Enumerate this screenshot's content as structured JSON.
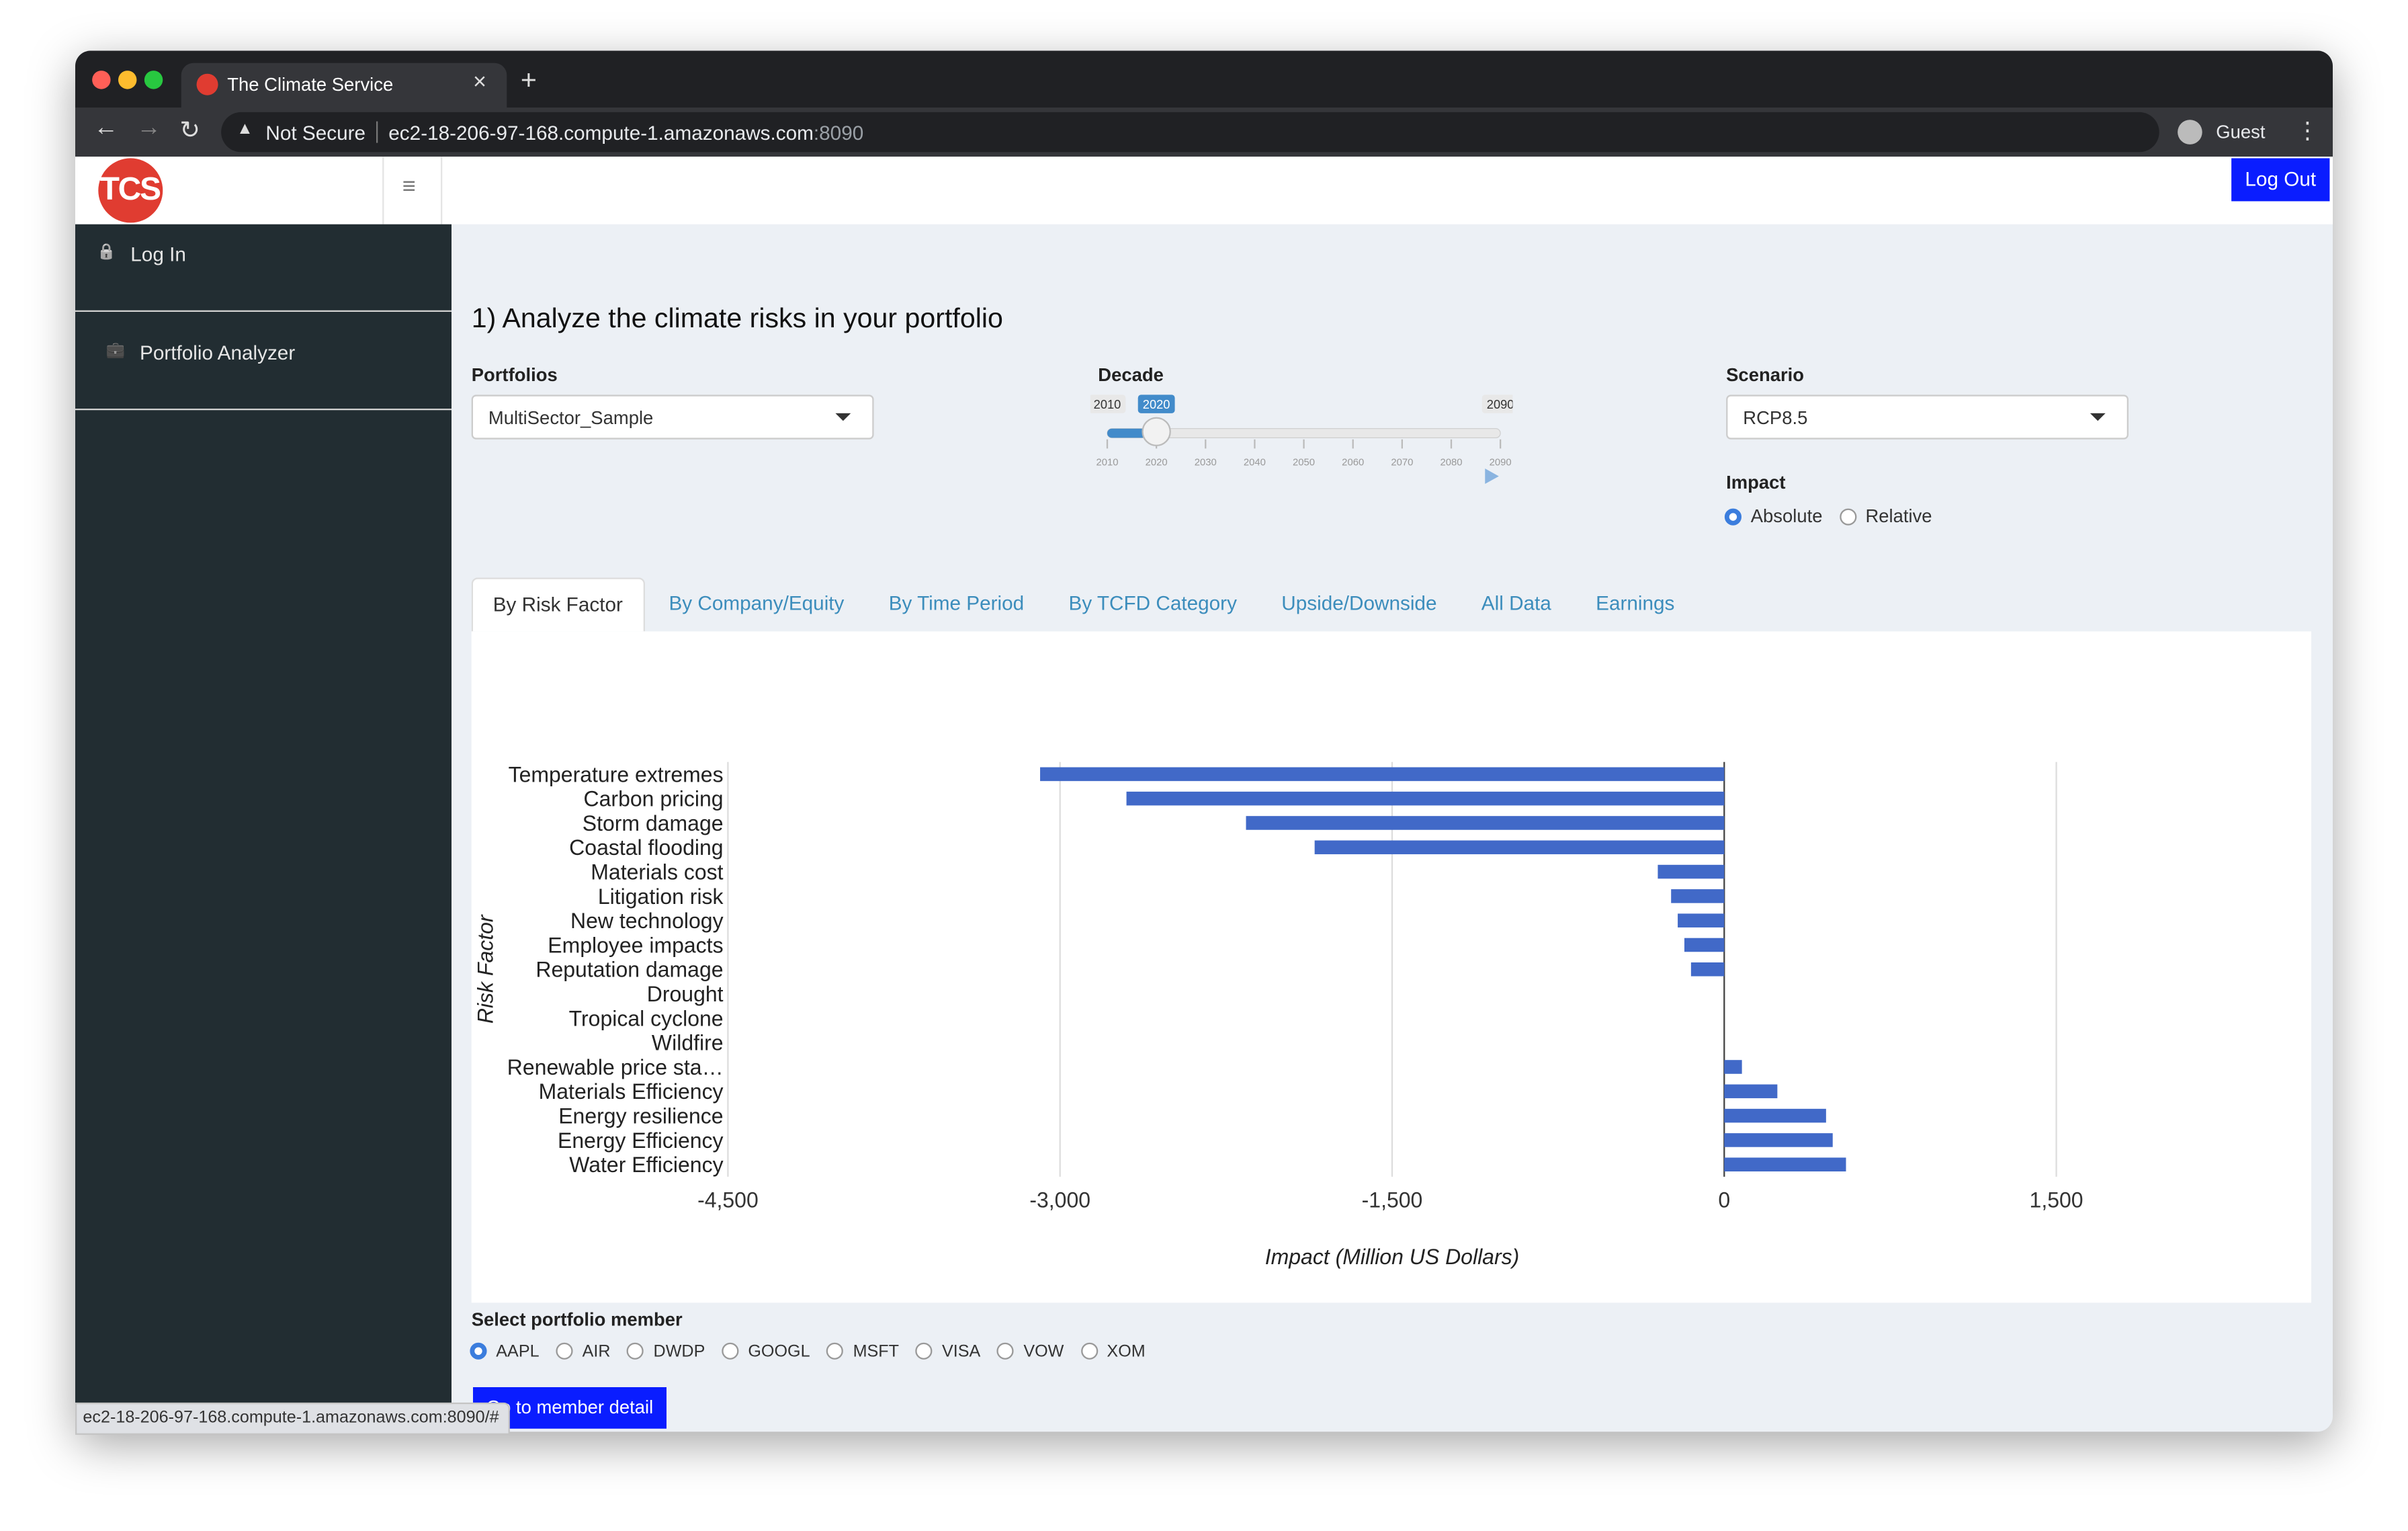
{
  "browser": {
    "tab_title": "The Climate Service",
    "url_warning": "Not Secure",
    "url_host": "ec2-18-206-97-168.compute-1.amazonaws.com",
    "url_port": ":8090",
    "profile": "Guest"
  },
  "header": {
    "logo": "TCS",
    "logout": "Log Out"
  },
  "sidebar": {
    "items": [
      "Log In",
      "Portfolio Analyzer"
    ]
  },
  "main": {
    "heading": "1) Analyze the climate risks in your portfolio",
    "portfolios": {
      "label": "Portfolios",
      "value": "MultiSector_Sample"
    },
    "decade": {
      "label": "Decade",
      "min": 2010,
      "max": 2090,
      "value": 2020,
      "ticks": [
        2010,
        2020,
        2030,
        2040,
        2050,
        2060,
        2070,
        2080,
        2090
      ]
    },
    "scenario": {
      "label": "Scenario",
      "value": "RCP8.5"
    },
    "impact": {
      "label": "Impact",
      "options": [
        "Absolute",
        "Relative"
      ],
      "selected": "Absolute"
    },
    "tabs": [
      "By Risk Factor",
      "By Company/Equity",
      "By Time Period",
      "By TCFD Category",
      "Upside/Downside",
      "All Data",
      "Earnings"
    ],
    "active_tab": "By Risk Factor",
    "member": {
      "label": "Select portfolio member",
      "options": [
        "AAPL",
        "AIR",
        "DWDP",
        "GOOGL",
        "MSFT",
        "VISA",
        "VOW",
        "XOM"
      ],
      "selected": "AAPL"
    },
    "button": "Go to member detail",
    "status_url": "ec2-18-206-97-168.compute-1.amazonaws.com:8090/#"
  },
  "chart_data": {
    "type": "hbar",
    "xlabel": "Impact (Million US Dollars)",
    "ylabel": "Risk Factor",
    "categories": [
      "Temperature extremes",
      "Carbon pricing",
      "Storm damage",
      "Coastal flooding",
      "Materials cost",
      "Litigation risk",
      "New technology",
      "Employee impacts",
      "Reputation damage",
      "Drought",
      "Tropical cyclone",
      "Wildfire",
      "Renewable price sta…",
      "Materials Efficiency",
      "Energy resilience",
      "Energy Efficiency",
      "Water Efficiency"
    ],
    "values": [
      -3090,
      -2700,
      -2160,
      -1850,
      -300,
      -240,
      -210,
      -180,
      -150,
      0,
      0,
      0,
      80,
      240,
      460,
      490,
      550
    ],
    "color": "#4169c8",
    "xlim": [
      -4500,
      1500
    ],
    "xticks": [
      {
        "value": -4500,
        "label": "-4,500"
      },
      {
        "value": -3000,
        "label": "-3,000"
      },
      {
        "value": -1500,
        "label": "-1,500"
      },
      0,
      {
        "value": 1500,
        "label": "1,500"
      }
    ],
    "grid": true
  }
}
